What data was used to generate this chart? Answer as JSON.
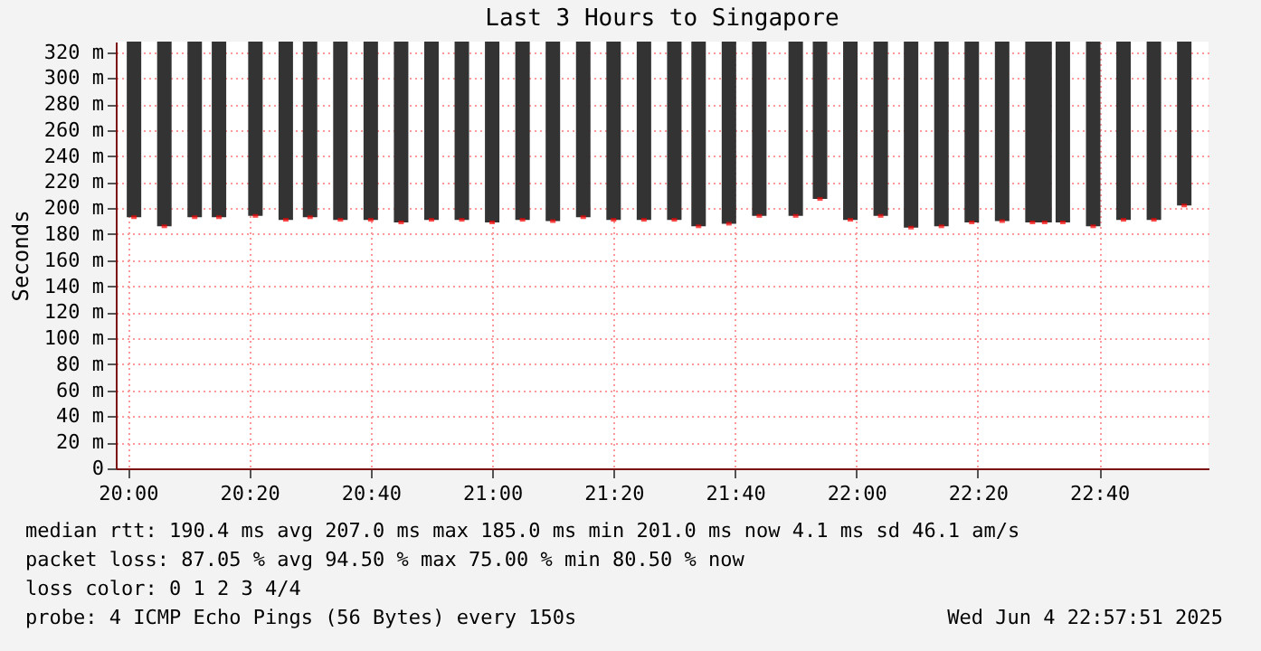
{
  "chart_data": {
    "type": "bar",
    "title": "Last 3 Hours to Singapore",
    "ylabel": "Seconds",
    "x": [
      "2025-06-04T20:01",
      "2025-06-04T20:06",
      "2025-06-04T20:11",
      "2025-06-04T20:15",
      "2025-06-04T20:21",
      "2025-06-04T20:26",
      "2025-06-04T20:30",
      "2025-06-04T20:35",
      "2025-06-04T20:40",
      "2025-06-04T20:45",
      "2025-06-04T20:50",
      "2025-06-04T20:55",
      "2025-06-04T21:00",
      "2025-06-04T21:05",
      "2025-06-04T21:10",
      "2025-06-04T21:15",
      "2025-06-04T21:20",
      "2025-06-04T21:25",
      "2025-06-04T21:30",
      "2025-06-04T21:34",
      "2025-06-04T21:39",
      "2025-06-04T21:44",
      "2025-06-04T21:50",
      "2025-06-04T21:54",
      "2025-06-04T21:59",
      "2025-06-04T22:04",
      "2025-06-04T22:09",
      "2025-06-04T22:14",
      "2025-06-04T22:19",
      "2025-06-04T22:24",
      "2025-06-04T22:29",
      "2025-06-04T22:31",
      "2025-06-04T22:34",
      "2025-06-04T22:39",
      "2025-06-04T22:44",
      "2025-06-04T22:49",
      "2025-06-04T22:54"
    ],
    "series": [
      {
        "color": "#333333",
        "base": [
          193,
          186,
          193,
          193,
          194,
          191,
          193,
          191,
          191,
          189,
          191,
          191,
          189,
          191,
          190,
          193,
          191,
          191,
          191,
          186,
          188,
          194,
          194,
          207,
          191,
          194,
          185,
          186,
          189,
          190,
          189,
          189,
          189,
          186,
          191,
          191,
          202
        ],
        "values": [
          135,
          142,
          135,
          135,
          134,
          137,
          135,
          137,
          137,
          139,
          137,
          137,
          139,
          137,
          138,
          135,
          137,
          137,
          137,
          142,
          140,
          134,
          134,
          121,
          137,
          134,
          143,
          142,
          139,
          138,
          139,
          139,
          139,
          142,
          137,
          137,
          126
        ]
      },
      {
        "type": "scatter",
        "color": "#ff0000",
        "values": [
          193,
          186,
          193,
          193,
          194,
          191,
          193,
          191,
          191,
          189,
          191,
          191,
          189,
          191,
          190,
          193,
          191,
          191,
          191,
          186,
          188,
          194,
          194,
          207,
          191,
          194,
          185,
          186,
          189,
          190,
          189,
          189,
          189,
          186,
          191,
          191,
          202
        ]
      }
    ],
    "xlim": [
      "2025-06-04T19:58",
      "2025-06-04T22:58"
    ],
    "xticks": [
      {
        "value": "2025-06-04T20:00",
        "label": "20:00"
      },
      {
        "value": "2025-06-04T20:20",
        "label": "20:20"
      },
      {
        "value": "2025-06-04T20:40",
        "label": "20:40"
      },
      {
        "value": "2025-06-04T21:00",
        "label": "21:00"
      },
      {
        "value": "2025-06-04T21:20",
        "label": "21:20"
      },
      {
        "value": "2025-06-04T21:40",
        "label": "21:40"
      },
      {
        "value": "2025-06-04T22:00",
        "label": "22:00"
      },
      {
        "value": "2025-06-04T22:20",
        "label": "22:20"
      },
      {
        "value": "2025-06-04T22:40",
        "label": "22:40"
      }
    ],
    "ylim": [
      0,
      328
    ],
    "yticks": [
      0,
      {
        "value": 20,
        "label": "20 m"
      },
      {
        "value": 40,
        "label": "40 m"
      },
      {
        "value": 60,
        "label": "60 m"
      },
      {
        "value": 80,
        "label": "80 m"
      },
      {
        "value": 100,
        "label": "100 m"
      },
      {
        "value": 120,
        "label": "120 m"
      },
      {
        "value": 140,
        "label": "140 m"
      },
      {
        "value": 160,
        "label": "160 m"
      },
      {
        "value": 180,
        "label": "180 m"
      },
      {
        "value": 200,
        "label": "200 m"
      },
      {
        "value": 220,
        "label": "220 m"
      },
      {
        "value": 240,
        "label": "240 m"
      },
      {
        "value": 260,
        "label": "260 m"
      },
      {
        "value": 280,
        "label": "280 m"
      },
      {
        "value": 300,
        "label": "300 m"
      },
      {
        "value": 320,
        "label": "320 m"
      }
    ],
    "grid": true,
    "annotations": [
      "median rtt:  190.4 ms avg  207.0 ms max  185.0 ms min  201.0 ms now  4.1 ms sd  46.1   am/s",
      "packet loss: 87.05 % avg  94.50 % max  75.00 % min  80.50 % now",
      "loss color:  0  1  2  3  4/4",
      "probe:       4 ICMP Echo Pings (56 Bytes) every 150s",
      "Wed Jun  4 22:57:51 2025"
    ]
  }
}
